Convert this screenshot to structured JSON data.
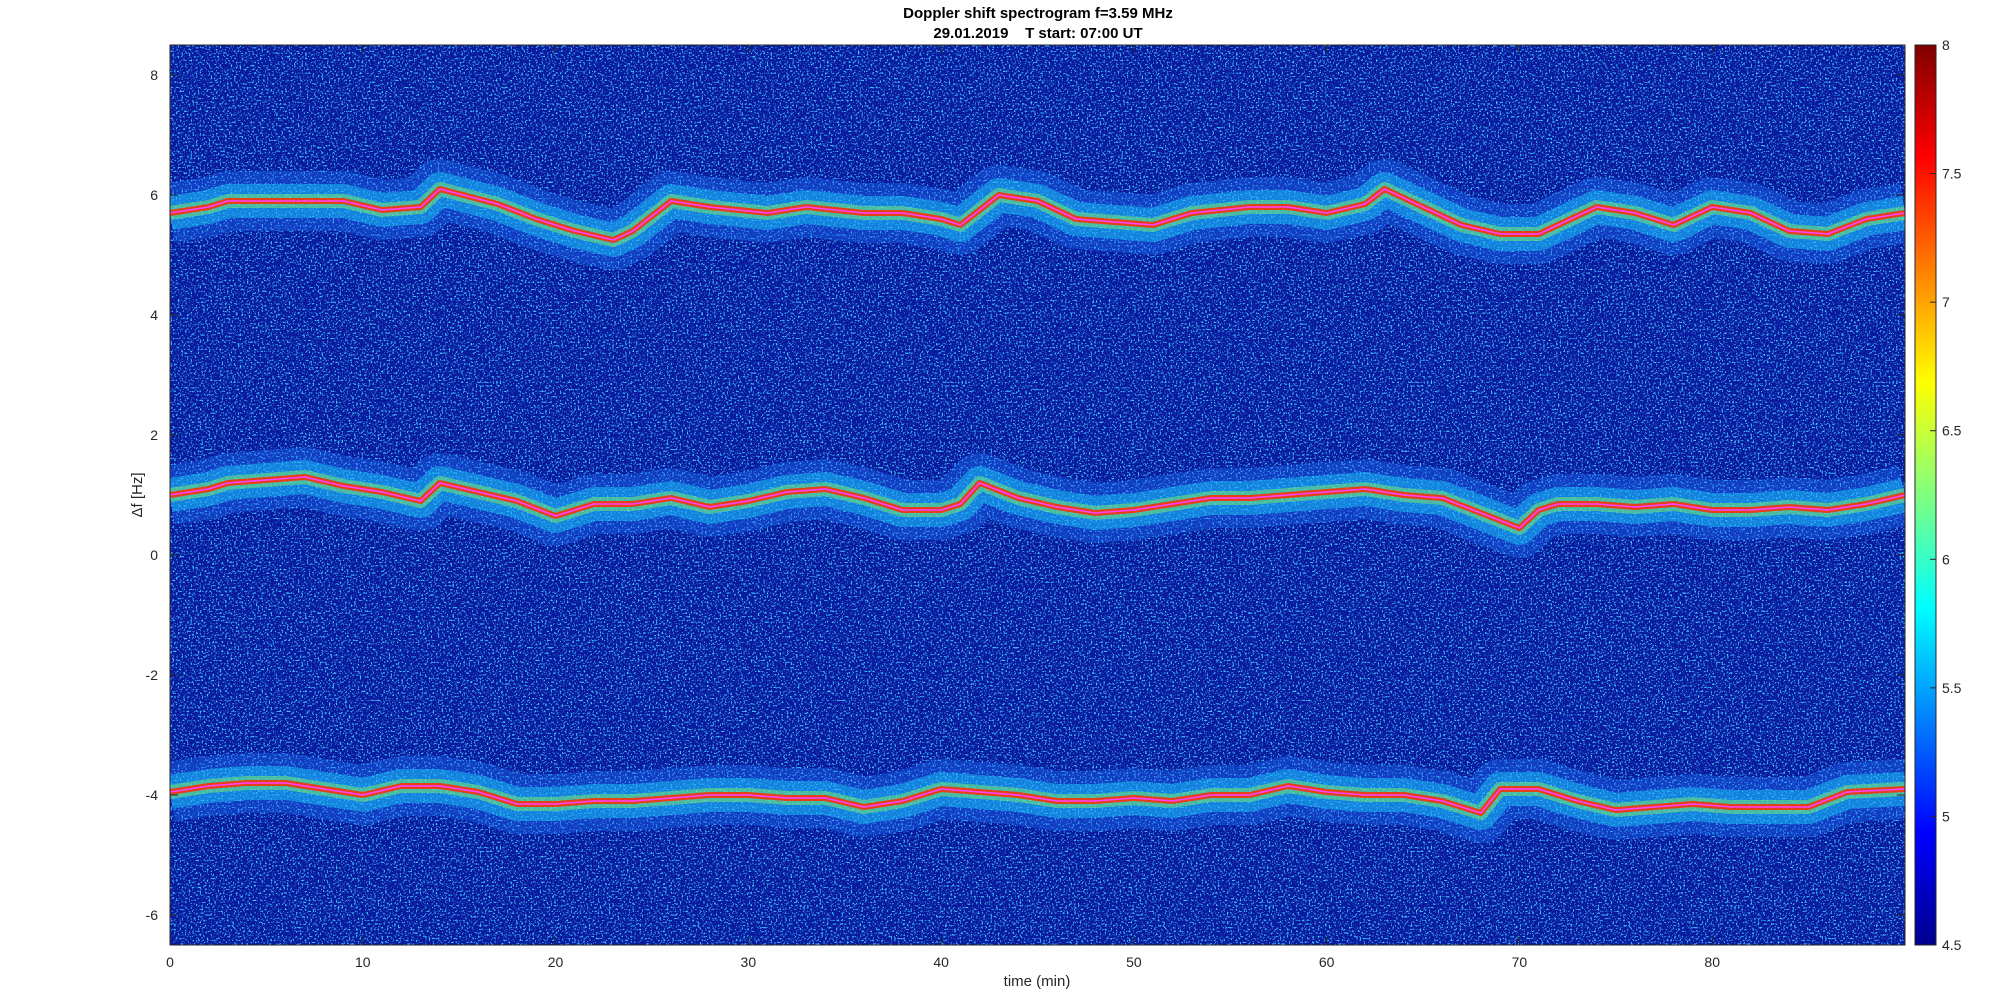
{
  "chart_data": {
    "type": "heatmap",
    "title": "Doppler shift spectrogram f=3.59 MHz",
    "subtitle": "29.01.2019    T start: 07:00 UT",
    "xlabel": "time (min)",
    "ylabel": "Δf [Hz]",
    "xlim": [
      0,
      90
    ],
    "ylim": [
      -6.5,
      8.5
    ],
    "xticks": [
      0,
      10,
      20,
      30,
      40,
      50,
      60,
      70,
      80
    ],
    "yticks": [
      -6,
      -4,
      -2,
      0,
      2,
      4,
      6,
      8
    ],
    "colorbar": {
      "colormap": "jet",
      "range": [
        4.5,
        8
      ],
      "ticks": [
        4.5,
        5,
        5.5,
        6,
        6.5,
        7,
        7.5,
        8
      ]
    },
    "background_color": "#0a1a9e",
    "trace_color": "#ff40ff",
    "series": [
      {
        "x": [
          0,
          2,
          3,
          5,
          7,
          9,
          11,
          13,
          14,
          17,
          19,
          21,
          23,
          24,
          26,
          28,
          31,
          33,
          36,
          38,
          40,
          41,
          43,
          45,
          47,
          49,
          51,
          53,
          56,
          58,
          60,
          62,
          63,
          65,
          67,
          69,
          71,
          72,
          74,
          76,
          78,
          80,
          82,
          84,
          86,
          88,
          90
        ],
        "y": [
          5.7,
          5.8,
          5.9,
          5.9,
          5.9,
          5.9,
          5.75,
          5.8,
          6.1,
          5.85,
          5.6,
          5.4,
          5.25,
          5.4,
          5.9,
          5.8,
          5.7,
          5.8,
          5.7,
          5.7,
          5.6,
          5.5,
          6.0,
          5.9,
          5.6,
          5.55,
          5.5,
          5.7,
          5.8,
          5.8,
          5.7,
          5.85,
          6.1,
          5.8,
          5.5,
          5.35,
          5.35,
          5.5,
          5.8,
          5.7,
          5.5,
          5.8,
          5.7,
          5.4,
          5.35,
          5.6,
          5.7
        ]
      },
      {
        "x": [
          0,
          2,
          3,
          5,
          7,
          9,
          11,
          13,
          14,
          16,
          18,
          20,
          22,
          24,
          26,
          28,
          30,
          32,
          34,
          36,
          38,
          40,
          41,
          42,
          44,
          46,
          48,
          50,
          52,
          54,
          56,
          58,
          60,
          62,
          64,
          66,
          68,
          70,
          71,
          72,
          74,
          76,
          78,
          80,
          82,
          84,
          86,
          88,
          90
        ],
        "y": [
          1.0,
          1.1,
          1.2,
          1.25,
          1.3,
          1.15,
          1.05,
          0.9,
          1.2,
          1.05,
          0.9,
          0.65,
          0.85,
          0.85,
          0.95,
          0.8,
          0.9,
          1.05,
          1.1,
          0.95,
          0.75,
          0.75,
          0.85,
          1.2,
          0.95,
          0.8,
          0.7,
          0.75,
          0.85,
          0.95,
          0.95,
          1.0,
          1.05,
          1.1,
          1.0,
          0.95,
          0.7,
          0.45,
          0.75,
          0.85,
          0.85,
          0.8,
          0.85,
          0.75,
          0.75,
          0.8,
          0.75,
          0.85,
          1.0
        ]
      },
      {
        "x": [
          0,
          2,
          4,
          6,
          8,
          10,
          12,
          14,
          16,
          18,
          20,
          22,
          24,
          26,
          28,
          30,
          32,
          34,
          36,
          38,
          40,
          42,
          44,
          46,
          48,
          50,
          52,
          54,
          56,
          58,
          60,
          62,
          64,
          66,
          68,
          69,
          71,
          73,
          75,
          77,
          79,
          81,
          83,
          85,
          87,
          90
        ],
        "y": [
          -3.95,
          -3.85,
          -3.8,
          -3.8,
          -3.9,
          -4.0,
          -3.85,
          -3.85,
          -3.95,
          -4.15,
          -4.15,
          -4.1,
          -4.1,
          -4.05,
          -4.0,
          -4.0,
          -4.05,
          -4.05,
          -4.2,
          -4.1,
          -3.9,
          -3.95,
          -4.0,
          -4.1,
          -4.1,
          -4.05,
          -4.1,
          -4.0,
          -4.0,
          -3.85,
          -3.95,
          -4.0,
          -4.0,
          -4.1,
          -4.3,
          -3.9,
          -3.9,
          -4.1,
          -4.25,
          -4.2,
          -4.15,
          -4.2,
          -4.2,
          -4.2,
          -3.95,
          -3.9
        ]
      }
    ]
  }
}
